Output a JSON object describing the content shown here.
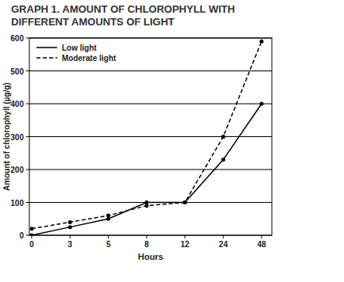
{
  "chart_data": {
    "type": "line",
    "title": "GRAPH 1. AMOUNT OF CHLOROPHYLL WITH DIFFERENT AMOUNTS OF LIGHT",
    "x_label": "Hours",
    "y_label": "Amount of chlorophyll (µg/g)",
    "categories": [
      "0",
      "3",
      "5",
      "8",
      "12",
      "24",
      "48"
    ],
    "series": [
      {
        "name": "Low light",
        "color": "#000000",
        "line_style": "solid",
        "marker": "circle",
        "values": [
          0,
          25,
          50,
          100,
          100,
          230,
          400
        ]
      },
      {
        "name": "Moderate light",
        "color": "#000000",
        "line_style": "dashed",
        "marker": "circle",
        "values": [
          20,
          40,
          60,
          90,
          100,
          300,
          590
        ]
      }
    ],
    "ylim": [
      0,
      600
    ],
    "yticks": [
      0,
      100,
      200,
      300,
      400,
      500,
      600
    ],
    "grid": true,
    "legend": "upper left"
  }
}
